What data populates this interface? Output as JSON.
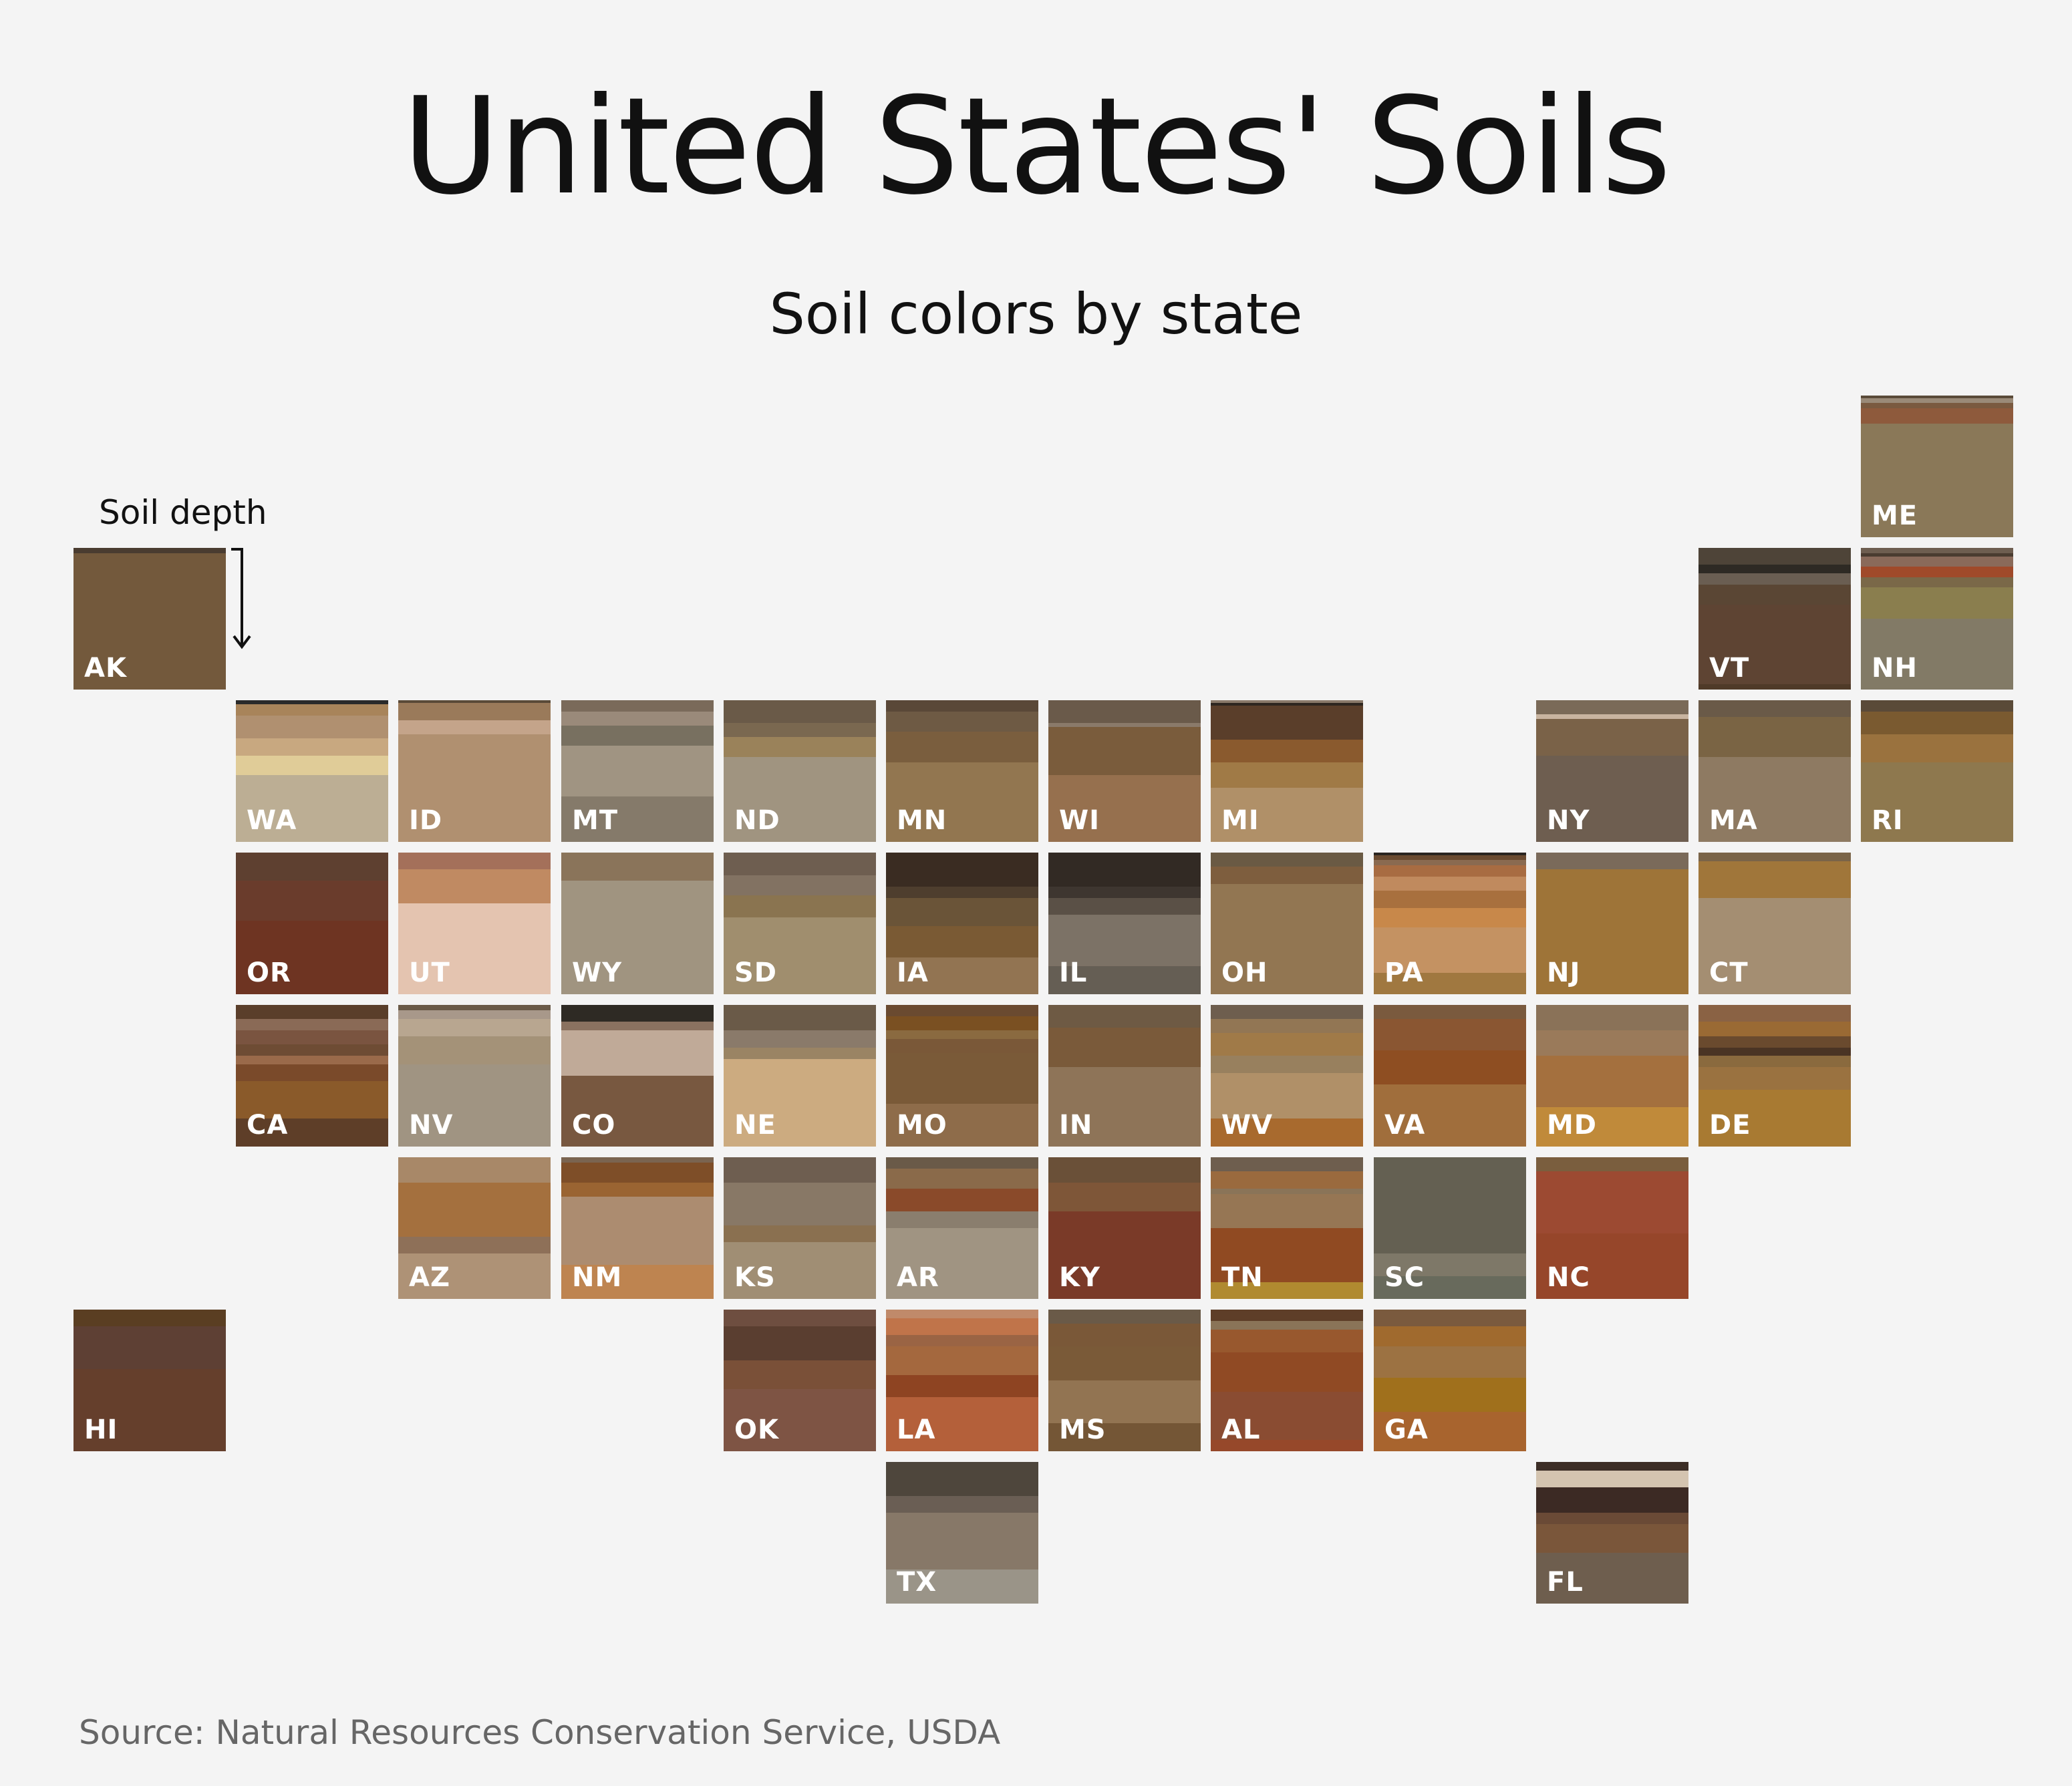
{
  "title": "United States' Soils",
  "subtitle": "Soil colors by state",
  "legend": {
    "depth_label": "Soil depth",
    "icon": "down-arrow-icon"
  },
  "source": "Source: Natural Resources Conservation Service, USDA",
  "states": [
    {
      "code": "ME",
      "row": 0,
      "col": 11,
      "bands": [
        [
          "#5a4a38",
          2
        ],
        [
          "#9a8a78",
          3
        ],
        [
          "#7a5a40",
          4
        ],
        [
          "#8e5a3c",
          11
        ],
        [
          "#8a7858",
          80
        ]
      ]
    },
    {
      "code": "AK",
      "row": 1,
      "col": 0,
      "bands": [
        [
          "#4a3c30",
          4
        ],
        [
          "#73593c",
          96
        ]
      ]
    },
    {
      "code": "VT",
      "row": 1,
      "col": 10,
      "bands": [
        [
          "#4e4438",
          12
        ],
        [
          "#2e2a24",
          6
        ],
        [
          "#6a5e52",
          8
        ],
        [
          "#5a4634",
          14
        ],
        [
          "#5e4433",
          56
        ],
        [
          "#4f3a28",
          4
        ]
      ]
    },
    {
      "code": "NH",
      "row": 1,
      "col": 11,
      "bands": [
        [
          "#6e5e50",
          4
        ],
        [
          "#4a3c30",
          2
        ],
        [
          "#8a6a5a",
          7
        ],
        [
          "#a04a2a",
          8
        ],
        [
          "#7a6848",
          7
        ],
        [
          "#8a7e4e",
          22
        ],
        [
          "#827a66",
          50
        ]
      ]
    },
    {
      "code": "WA",
      "row": 2,
      "col": 1,
      "bands": [
        [
          "#2a2a2a",
          3
        ],
        [
          "#a8845a",
          8
        ],
        [
          "#b09070",
          16
        ],
        [
          "#c8a880",
          12
        ],
        [
          "#e0cc98",
          14
        ],
        [
          "#bcae94",
          47
        ]
      ]
    },
    {
      "code": "ID",
      "row": 2,
      "col": 2,
      "bands": [
        [
          "#5a4a38",
          2
        ],
        [
          "#9a7a5a",
          12
        ],
        [
          "#c4a48a",
          10
        ],
        [
          "#b09070",
          76
        ]
      ]
    },
    {
      "code": "MT",
      "row": 2,
      "col": 3,
      "bands": [
        [
          "#7a6a5a",
          8
        ],
        [
          "#9a8a7a",
          10
        ],
        [
          "#787060",
          14
        ],
        [
          "#a09482",
          36
        ],
        [
          "#857a6a",
          32
        ]
      ]
    },
    {
      "code": "ND",
      "row": 2,
      "col": 4,
      "bands": [
        [
          "#6a5a48",
          16
        ],
        [
          "#7a6850",
          10
        ],
        [
          "#9a825a",
          14
        ],
        [
          "#a09480",
          60
        ]
      ]
    },
    {
      "code": "MN",
      "row": 2,
      "col": 5,
      "bands": [
        [
          "#5a4838",
          8
        ],
        [
          "#6e5a44",
          14
        ],
        [
          "#7a5e3e",
          22
        ],
        [
          "#927650",
          56
        ]
      ]
    },
    {
      "code": "WI",
      "row": 2,
      "col": 6,
      "bands": [
        [
          "#6a5a4a",
          16
        ],
        [
          "#8a7a6a",
          3
        ],
        [
          "#7a5c3c",
          34
        ],
        [
          "#96704e",
          47
        ]
      ]
    },
    {
      "code": "MI",
      "row": 2,
      "col": 7,
      "bands": [
        [
          "#8a7a6a",
          2
        ],
        [
          "#2e2620",
          2
        ],
        [
          "#5a3e2a",
          24
        ],
        [
          "#8a5a2e",
          16
        ],
        [
          "#a07a46",
          18
        ],
        [
          "#b09068",
          38
        ]
      ]
    },
    {
      "code": "NY",
      "row": 2,
      "col": 9,
      "bands": [
        [
          "#7a6a58",
          10
        ],
        [
          "#c8b4a0",
          3
        ],
        [
          "#7a6248",
          26
        ],
        [
          "#6e5e50",
          61
        ]
      ]
    },
    {
      "code": "MA",
      "row": 2,
      "col": 10,
      "bands": [
        [
          "#6a5a48",
          12
        ],
        [
          "#7a6444",
          28
        ],
        [
          "#8e7a62",
          60
        ]
      ]
    },
    {
      "code": "RI",
      "row": 2,
      "col": 11,
      "bands": [
        [
          "#5a4a38",
          8
        ],
        [
          "#7a5a30",
          16
        ],
        [
          "#9a723e",
          20
        ],
        [
          "#8e784e",
          56
        ]
      ]
    },
    {
      "code": "OR",
      "row": 3,
      "col": 1,
      "bands": [
        [
          "#5e4030",
          20
        ],
        [
          "#6a3c2c",
          28
        ],
        [
          "#6e3422",
          52
        ]
      ]
    },
    {
      "code": "UT",
      "row": 3,
      "col": 2,
      "bands": [
        [
          "#a4705a",
          12
        ],
        [
          "#c08a62",
          24
        ],
        [
          "#e4c4b0",
          64
        ]
      ]
    },
    {
      "code": "WY",
      "row": 3,
      "col": 3,
      "bands": [
        [
          "#8a745a",
          20
        ],
        [
          "#a09480",
          80
        ]
      ]
    },
    {
      "code": "SD",
      "row": 3,
      "col": 4,
      "bands": [
        [
          "#6e5e50",
          16
        ],
        [
          "#827262",
          14
        ],
        [
          "#8a7450",
          16
        ],
        [
          "#a08e6e",
          54
        ]
      ]
    },
    {
      "code": "IA",
      "row": 3,
      "col": 5,
      "bands": [
        [
          "#3a2c22",
          24
        ],
        [
          "#4e3e2e",
          8
        ],
        [
          "#6a5438",
          20
        ],
        [
          "#7a5a34",
          22
        ],
        [
          "#927452",
          26
        ]
      ]
    },
    {
      "code": "IL",
      "row": 3,
      "col": 6,
      "bands": [
        [
          "#322a24",
          24
        ],
        [
          "#3e3630",
          8
        ],
        [
          "#5a5046",
          12
        ],
        [
          "#7c7266",
          36
        ],
        [
          "#655e54",
          20
        ]
      ]
    },
    {
      "code": "OH",
      "row": 3,
      "col": 7,
      "bands": [
        [
          "#6a5a44",
          10
        ],
        [
          "#7e5e3e",
          12
        ],
        [
          "#927652",
          78
        ]
      ]
    },
    {
      "code": "PA",
      "row": 3,
      "col": 8,
      "bands": [
        [
          "#2a2420",
          2
        ],
        [
          "#6a4a30",
          3
        ],
        [
          "#8a6a50",
          4
        ],
        [
          "#a86c42",
          8
        ],
        [
          "#c08a5e",
          10
        ],
        [
          "#a8703e",
          12
        ],
        [
          "#c8884a",
          14
        ],
        [
          "#c49262",
          32
        ],
        [
          "#a07840",
          15
        ]
      ]
    },
    {
      "code": "NJ",
      "row": 3,
      "col": 9,
      "bands": [
        [
          "#7a6a5a",
          12
        ],
        [
          "#9e7438",
          88
        ]
      ]
    },
    {
      "code": "CT",
      "row": 3,
      "col": 10,
      "bands": [
        [
          "#7a6448",
          6
        ],
        [
          "#a0763a",
          26
        ],
        [
          "#a48e72",
          68
        ]
      ]
    },
    {
      "code": "CA",
      "row": 4,
      "col": 1,
      "bands": [
        [
          "#5a3e2a",
          10
        ],
        [
          "#8a6a56",
          8
        ],
        [
          "#7a5440",
          10
        ],
        [
          "#6e4c34",
          8
        ],
        [
          "#9a6a4a",
          6
        ],
        [
          "#7a4a2a",
          12
        ],
        [
          "#8a5a2a",
          26
        ],
        [
          "#5e3e28",
          20
        ]
      ]
    },
    {
      "code": "NV",
      "row": 4,
      "col": 2,
      "bands": [
        [
          "#6a5a48",
          4
        ],
        [
          "#a8988a",
          6
        ],
        [
          "#b8a690",
          12
        ],
        [
          "#a49278",
          20
        ],
        [
          "#a09482",
          58
        ]
      ]
    },
    {
      "code": "CO",
      "row": 4,
      "col": 3,
      "bands": [
        [
          "#2e2a24",
          12
        ],
        [
          "#8a7260",
          6
        ],
        [
          "#c0aa98",
          32
        ],
        [
          "#785840",
          50
        ]
      ]
    },
    {
      "code": "NE",
      "row": 4,
      "col": 4,
      "bands": [
        [
          "#6a5a48",
          18
        ],
        [
          "#8a7a6a",
          12
        ],
        [
          "#9a8464",
          8
        ],
        [
          "#ccab80",
          62
        ]
      ]
    },
    {
      "code": "MO",
      "row": 4,
      "col": 5,
      "bands": [
        [
          "#6a4a30",
          8
        ],
        [
          "#7a5022",
          10
        ],
        [
          "#8a6a40",
          6
        ],
        [
          "#7a5838",
          10
        ],
        [
          "#7a5a38",
          36
        ],
        [
          "#8e6c4a",
          30
        ]
      ]
    },
    {
      "code": "IN",
      "row": 4,
      "col": 6,
      "bands": [
        [
          "#6e5a44",
          16
        ],
        [
          "#7a5a3a",
          28
        ],
        [
          "#8e7458",
          56
        ]
      ]
    },
    {
      "code": "WV",
      "row": 4,
      "col": 7,
      "bands": [
        [
          "#6e5e4e",
          10
        ],
        [
          "#927654",
          10
        ],
        [
          "#a07a48",
          16
        ],
        [
          "#98805e",
          12
        ],
        [
          "#b09068",
          32
        ],
        [
          "#a86a2e",
          20
        ]
      ]
    },
    {
      "code": "VA",
      "row": 4,
      "col": 8,
      "bands": [
        [
          "#7a5a3e",
          10
        ],
        [
          "#8a5632",
          22
        ],
        [
          "#8e4e22",
          24
        ],
        [
          "#a06e3c",
          44
        ]
      ]
    },
    {
      "code": "MD",
      "row": 4,
      "col": 9,
      "bands": [
        [
          "#8a7258",
          18
        ],
        [
          "#9a7a5a",
          18
        ],
        [
          "#a4703e",
          36
        ],
        [
          "#c08a3a",
          28
        ]
      ]
    },
    {
      "code": "DE",
      "row": 4,
      "col": 10,
      "bands": [
        [
          "#8a6244",
          12
        ],
        [
          "#9a6a34",
          10
        ],
        [
          "#6a4a2e",
          8
        ],
        [
          "#4a3424",
          6
        ],
        [
          "#8a6a3e",
          8
        ],
        [
          "#9a7240",
          16
        ],
        [
          "#a87a32",
          40
        ]
      ]
    },
    {
      "code": "AZ",
      "row": 5,
      "col": 2,
      "bands": [
        [
          "#a88868",
          18
        ],
        [
          "#a4703e",
          38
        ],
        [
          "#8e7058",
          12
        ],
        [
          "#ae9276",
          32
        ]
      ]
    },
    {
      "code": "NM",
      "row": 5,
      "col": 3,
      "bands": [
        [
          "#7a6450",
          4
        ],
        [
          "#7e4e28",
          14
        ],
        [
          "#9a6432",
          10
        ],
        [
          "#ac8c70",
          48
        ],
        [
          "#be8450",
          24
        ]
      ]
    },
    {
      "code": "KS",
      "row": 5,
      "col": 4,
      "bands": [
        [
          "#6e5e50",
          18
        ],
        [
          "#887866",
          30
        ],
        [
          "#8a7050",
          12
        ],
        [
          "#a08e74",
          40
        ]
      ]
    },
    {
      "code": "AR",
      "row": 5,
      "col": 5,
      "bands": [
        [
          "#6a5a48",
          8
        ],
        [
          "#8a6a4a",
          14
        ],
        [
          "#8a4a2a",
          16
        ],
        [
          "#8a7e6e",
          12
        ],
        [
          "#a09482",
          50
        ]
      ]
    },
    {
      "code": "KY",
      "row": 5,
      "col": 6,
      "bands": [
        [
          "#6a5038",
          18
        ],
        [
          "#7e5638",
          20
        ],
        [
          "#7a3a28",
          62
        ]
      ]
    },
    {
      "code": "TN",
      "row": 5,
      "col": 7,
      "bands": [
        [
          "#6e5e4e",
          10
        ],
        [
          "#9a6a3e",
          12
        ],
        [
          "#8a7458",
          4
        ],
        [
          "#967654",
          24
        ],
        [
          "#904a22",
          38
        ],
        [
          "#b08a30",
          12
        ]
      ]
    },
    {
      "code": "SC",
      "row": 5,
      "col": 8,
      "bands": [
        [
          "#646052",
          68
        ],
        [
          "#7e7868",
          16
        ],
        [
          "#686a5c",
          16
        ]
      ]
    },
    {
      "code": "NC",
      "row": 5,
      "col": 9,
      "bands": [
        [
          "#7a5e3e",
          10
        ],
        [
          "#9c4a32",
          44
        ],
        [
          "#96462a",
          46
        ]
      ]
    },
    {
      "code": "HI",
      "row": 6,
      "col": 0,
      "bands": [
        [
          "#5a3e22",
          12
        ],
        [
          "#5e4034",
          30
        ],
        [
          "#653f2c",
          58
        ]
      ]
    },
    {
      "code": "OK",
      "row": 6,
      "col": 4,
      "bands": [
        [
          "#6e4e40",
          12
        ],
        [
          "#5a3e30",
          24
        ],
        [
          "#7a5038",
          20
        ],
        [
          "#7e5444",
          44
        ]
      ]
    },
    {
      "code": "LA",
      "row": 6,
      "col": 5,
      "bands": [
        [
          "#c08a6a",
          6
        ],
        [
          "#c0744a",
          12
        ],
        [
          "#9a6444",
          8
        ],
        [
          "#a4683e",
          20
        ],
        [
          "#8e4422",
          16
        ],
        [
          "#b4603a",
          38
        ]
      ]
    },
    {
      "code": "MS",
      "row": 6,
      "col": 6,
      "bands": [
        [
          "#6a5a48",
          10
        ],
        [
          "#7a5838",
          16
        ],
        [
          "#7a5a38",
          24
        ],
        [
          "#927452",
          30
        ],
        [
          "#745636",
          20
        ]
      ]
    },
    {
      "code": "AL",
      "row": 6,
      "col": 7,
      "bands": [
        [
          "#5e3e28",
          8
        ],
        [
          "#8a7458",
          6
        ],
        [
          "#98582e",
          16
        ],
        [
          "#904a24",
          28
        ],
        [
          "#8a4c32",
          34
        ],
        [
          "#96482a",
          8
        ]
      ]
    },
    {
      "code": "GA",
      "row": 6,
      "col": 8,
      "bands": [
        [
          "#7a5a3e",
          12
        ],
        [
          "#a06a2e",
          14
        ],
        [
          "#9c7242",
          22
        ],
        [
          "#a0701c",
          24
        ],
        [
          "#a8642e",
          28
        ]
      ]
    },
    {
      "code": "TX",
      "row": 7,
      "col": 5,
      "bands": [
        [
          "#4e463c",
          24
        ],
        [
          "#6a5e54",
          12
        ],
        [
          "#877868",
          40
        ],
        [
          "#9a9488",
          24
        ]
      ]
    },
    {
      "code": "FL",
      "row": 7,
      "col": 9,
      "bands": [
        [
          "#3c2e26",
          6
        ],
        [
          "#d4c4b0",
          12
        ],
        [
          "#3c2a24",
          18
        ],
        [
          "#6a4a36",
          8
        ],
        [
          "#7a563a",
          20
        ],
        [
          "#6e5e4e",
          36
        ]
      ]
    }
  ]
}
